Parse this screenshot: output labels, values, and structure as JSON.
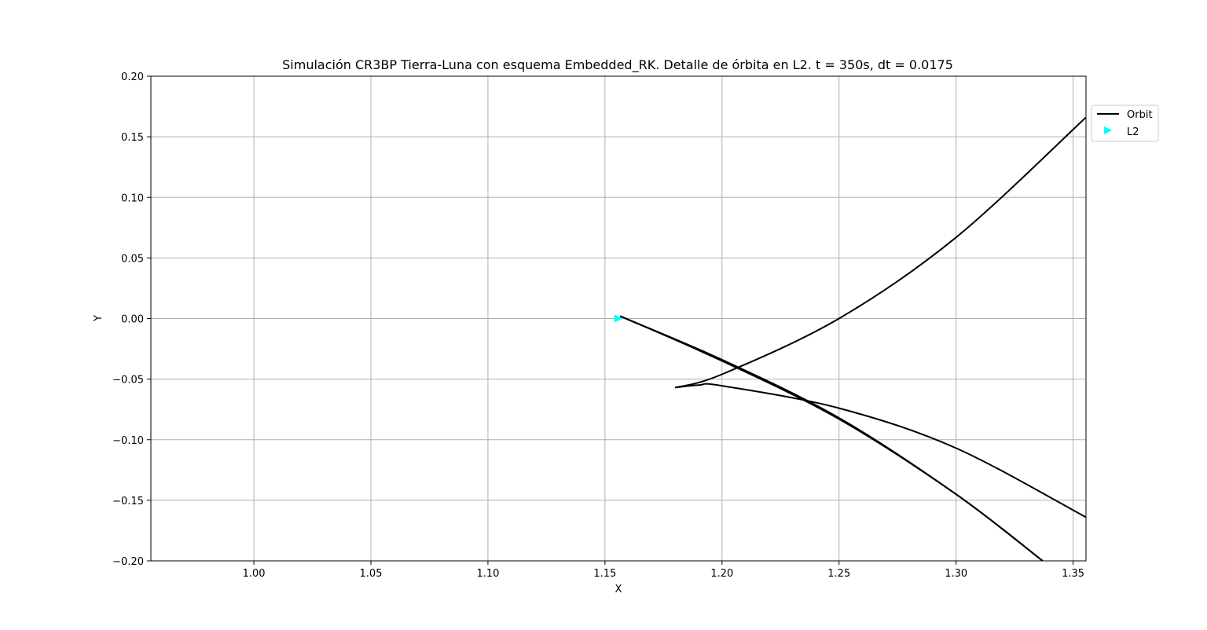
{
  "chart_data": {
    "type": "line",
    "title": "Simulación CR3BP Tierra-Luna con esquema Embedded_RK. Detalle de órbita en L2. t = 350s, dt = 0.0175",
    "xlabel": "X",
    "ylabel": "Y",
    "xlim": [
      0.956,
      1.3555
    ],
    "ylim": [
      -0.2,
      0.2
    ],
    "xticks": [
      1.0,
      1.05,
      1.1,
      1.15,
      1.2,
      1.25,
      1.3,
      1.35
    ],
    "xtick_labels": [
      "1.00",
      "1.05",
      "1.10",
      "1.15",
      "1.20",
      "1.25",
      "1.30",
      "1.35"
    ],
    "yticks": [
      -0.2,
      -0.15,
      -0.1,
      -0.05,
      0.0,
      0.05,
      0.1,
      0.15,
      0.2
    ],
    "ytick_labels": [
      "−0.20",
      "−0.15",
      "−0.10",
      "−0.05",
      "0.00",
      "0.05",
      "0.10",
      "0.15",
      "0.20"
    ],
    "grid": true,
    "legend_position": "outside-top-right",
    "series": [
      {
        "name": "Orbit",
        "kind": "line",
        "color": "#000000",
        "segments": [
          [
            [
              1.337,
              -0.2
            ],
            [
              1.3,
              -0.145
            ],
            [
              1.25,
              -0.083
            ],
            [
              1.2,
              -0.035
            ],
            [
              1.1565,
              0.002
            ]
          ],
          [
            [
              1.1565,
              0.002
            ],
            [
              1.2,
              -0.034
            ],
            [
              1.25,
              -0.082
            ],
            [
              1.3,
              -0.145
            ],
            [
              1.337,
              -0.2
            ]
          ],
          [
            [
              1.3555,
              0.166
            ],
            [
              1.3,
              0.067
            ],
            [
              1.25,
              0.0
            ],
            [
              1.2,
              -0.046
            ],
            [
              1.18,
              -0.057
            ]
          ],
          [
            [
              1.18,
              -0.057
            ],
            [
              1.19,
              -0.055
            ],
            [
              1.2,
              -0.0555
            ],
            [
              1.25,
              -0.074
            ],
            [
              1.3,
              -0.107
            ],
            [
              1.3555,
              -0.164
            ]
          ]
        ]
      },
      {
        "name": "L2",
        "kind": "marker",
        "marker": "triangle-right",
        "color": "#00ffff",
        "points": [
          [
            1.1557,
            0.0
          ]
        ]
      }
    ]
  }
}
